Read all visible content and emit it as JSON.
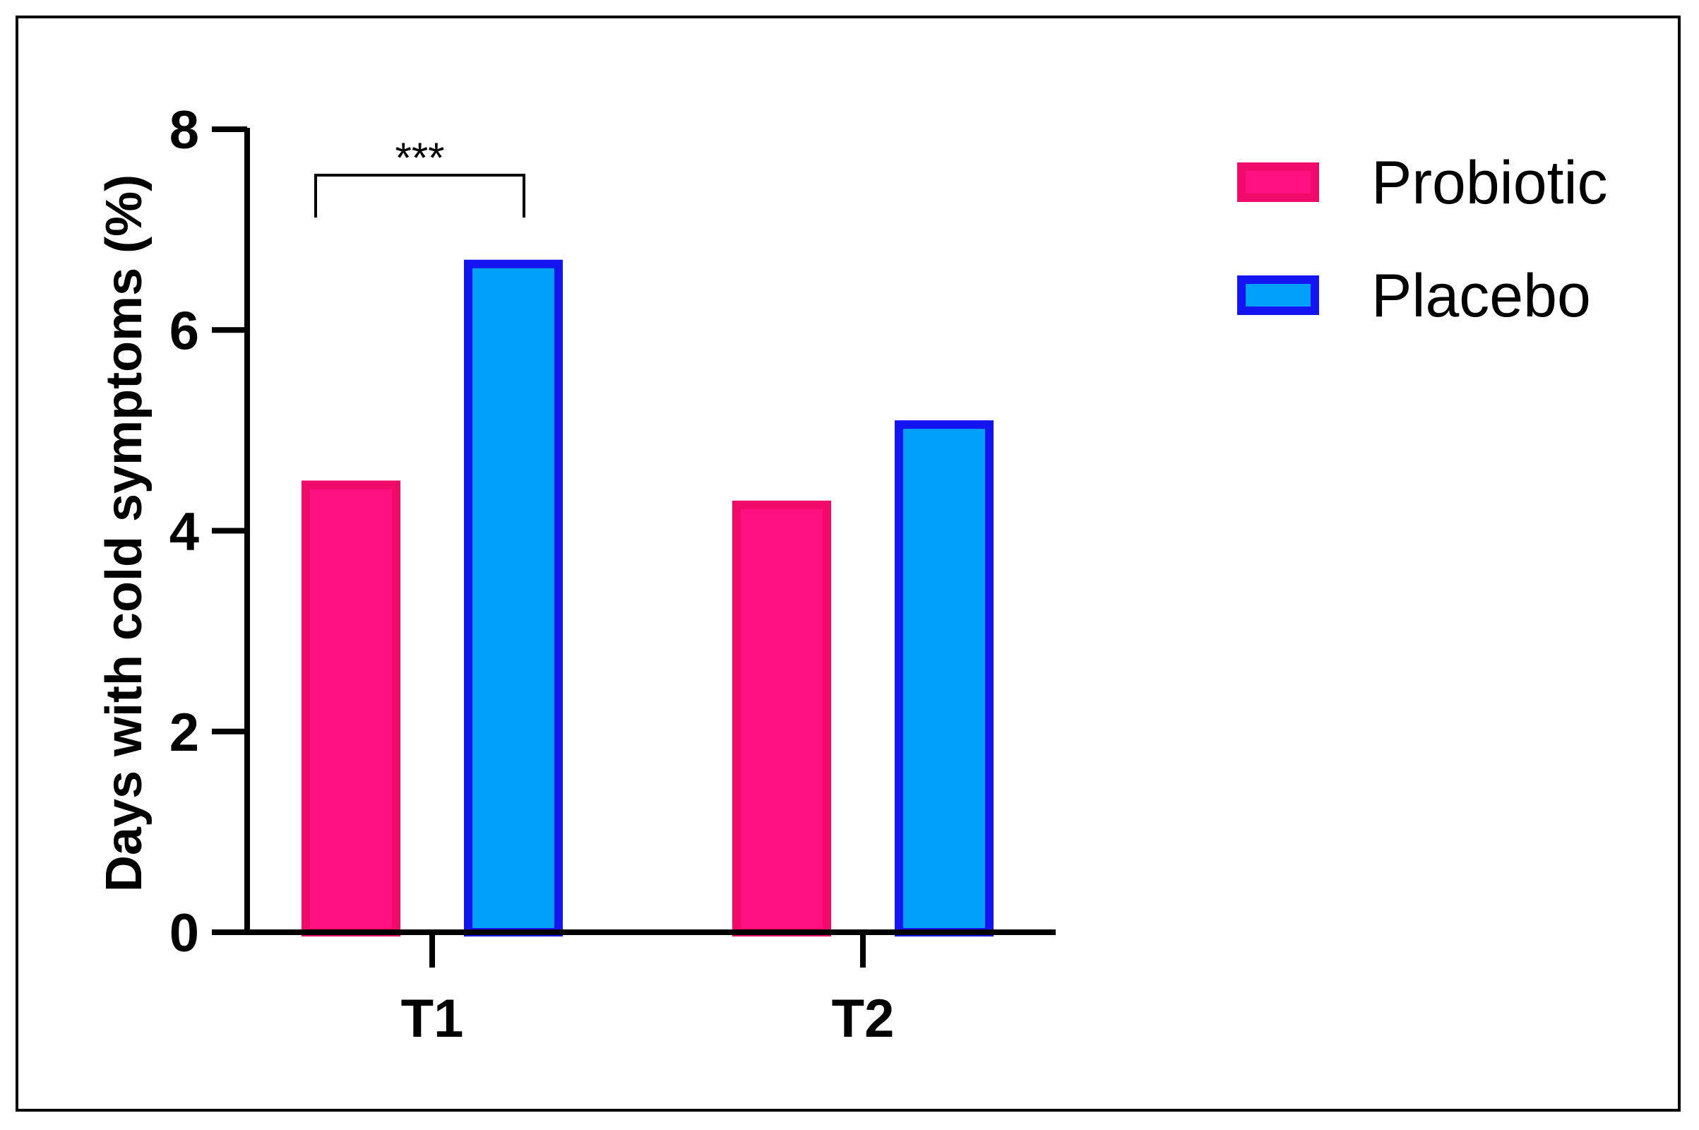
{
  "chart_data": {
    "type": "bar",
    "categories": [
      "T1",
      "T2"
    ],
    "series": [
      {
        "name": "Probiotic",
        "values": [
          4.5,
          4.3
        ],
        "fill": "#FF1080",
        "stroke": "#F00A6A"
      },
      {
        "name": "Placebo",
        "values": [
          6.7,
          5.1
        ],
        "fill": "#00A0FA",
        "stroke": "#1414F0"
      }
    ],
    "title": "",
    "xlabel": "",
    "ylabel": "Days with cold symptoms (%)",
    "ylim": [
      0,
      8
    ],
    "yticks": [
      0,
      2,
      4,
      6,
      8
    ],
    "grid": false,
    "legend_position": "top-right",
    "annotations": [
      {
        "text": "***",
        "category": "T1",
        "between_series": [
          "Probiotic",
          "Placebo"
        ]
      }
    ]
  }
}
